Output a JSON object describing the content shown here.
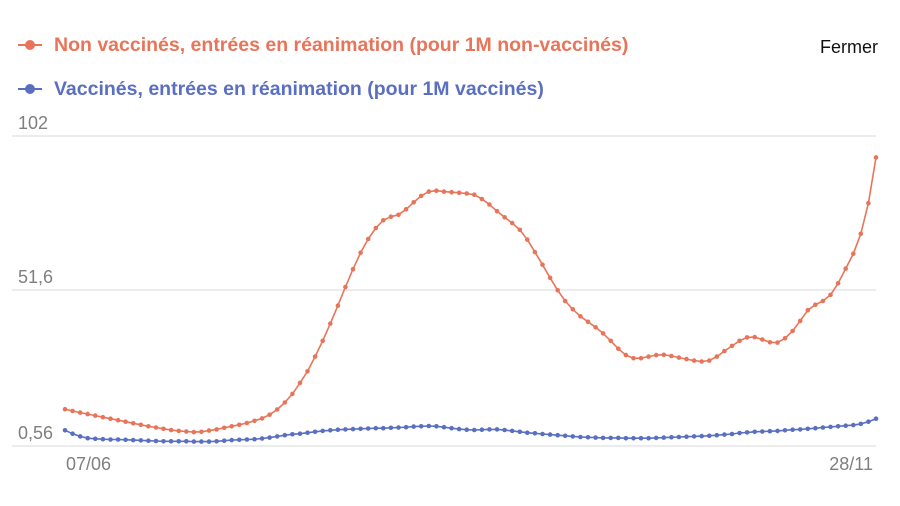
{
  "legend": [
    {
      "label": "Non vaccinés, entrées en réanimation (pour 1M non-vaccinés)",
      "color": "#e8755a"
    },
    {
      "label": "Vaccinés, entrées en réanimation (pour 1M vaccinés)",
      "color": "#5b6fc0"
    }
  ],
  "close_label": "Fermer",
  "chart_data": {
    "type": "line",
    "x_ticks": [
      "07/06",
      "28/11"
    ],
    "y_ticks": [
      "102",
      "51,6",
      "0,56"
    ],
    "ylim": [
      0.56,
      102
    ],
    "grid": true,
    "legend_position": "top-left",
    "x_start": "07/06",
    "x_end": "28/11",
    "series": [
      {
        "name": "Non vaccinés, entrées en réanimation (pour 1M non-vaccinés)",
        "color": "#e8755a",
        "values": [
          12.6,
          12.0,
          11.5,
          11.0,
          10.5,
          10.0,
          9.5,
          9.0,
          8.5,
          8.0,
          7.5,
          7.0,
          6.6,
          6.2,
          5.8,
          5.5,
          5.3,
          5.1,
          5.2,
          5.6,
          6.0,
          6.5,
          7.0,
          7.5,
          8.1,
          8.8,
          9.6,
          10.8,
          12.5,
          14.8,
          17.6,
          21.2,
          25.0,
          29.8,
          35.0,
          40.6,
          46.5,
          52.6,
          58.4,
          63.8,
          68.3,
          71.9,
          74.4,
          75.6,
          76.2,
          78.0,
          80.3,
          82.4,
          83.8,
          84.1,
          83.8,
          83.6,
          83.4,
          83.2,
          82.8,
          81.4,
          79.6,
          77.4,
          75.4,
          73.5,
          71.3,
          68.1,
          64.0,
          59.9,
          55.6,
          51.5,
          48.0,
          45.3,
          43.0,
          41.2,
          39.4,
          37.4,
          35.0,
          32.4,
          30.3,
          29.3,
          29.3,
          29.8,
          30.3,
          30.4,
          30.0,
          29.5,
          29.0,
          28.5,
          28.2,
          28.5,
          29.8,
          31.6,
          33.3,
          35.0,
          36.1,
          36.2,
          35.4,
          34.5,
          34.4,
          35.8,
          38.2,
          41.5,
          45.0,
          46.8,
          48.0,
          50.0,
          53.8,
          58.6,
          63.5,
          70.0,
          80.0,
          95.0
        ]
      },
      {
        "name": "Vaccinés, entrées en réanimation (pour 1M vaccinés)",
        "color": "#5b6fc0",
        "values": [
          5.7,
          4.6,
          3.7,
          3.1,
          2.9,
          2.8,
          2.7,
          2.7,
          2.6,
          2.5,
          2.4,
          2.3,
          2.2,
          2.1,
          2.1,
          2.1,
          2.1,
          2.0,
          2.0,
          2.0,
          2.1,
          2.3,
          2.5,
          2.6,
          2.7,
          2.8,
          3.0,
          3.3,
          3.7,
          4.1,
          4.4,
          4.6,
          4.9,
          5.2,
          5.5,
          5.7,
          5.9,
          6.0,
          6.1,
          6.2,
          6.3,
          6.4,
          6.4,
          6.5,
          6.6,
          6.7,
          6.9,
          7.0,
          7.1,
          7.0,
          6.7,
          6.4,
          6.1,
          5.9,
          5.8,
          5.9,
          6.0,
          6.0,
          5.8,
          5.5,
          5.2,
          4.9,
          4.7,
          4.5,
          4.3,
          4.1,
          3.9,
          3.7,
          3.5,
          3.4,
          3.3,
          3.2,
          3.2,
          3.2,
          3.1,
          3.1,
          3.1,
          3.1,
          3.2,
          3.3,
          3.4,
          3.5,
          3.6,
          3.7,
          3.8,
          3.9,
          4.1,
          4.3,
          4.5,
          4.8,
          5.0,
          5.2,
          5.3,
          5.4,
          5.5,
          5.7,
          5.9,
          6.0,
          6.2,
          6.4,
          6.6,
          6.8,
          7.0,
          7.2,
          7.4,
          7.8,
          8.5,
          9.5
        ]
      }
    ]
  }
}
